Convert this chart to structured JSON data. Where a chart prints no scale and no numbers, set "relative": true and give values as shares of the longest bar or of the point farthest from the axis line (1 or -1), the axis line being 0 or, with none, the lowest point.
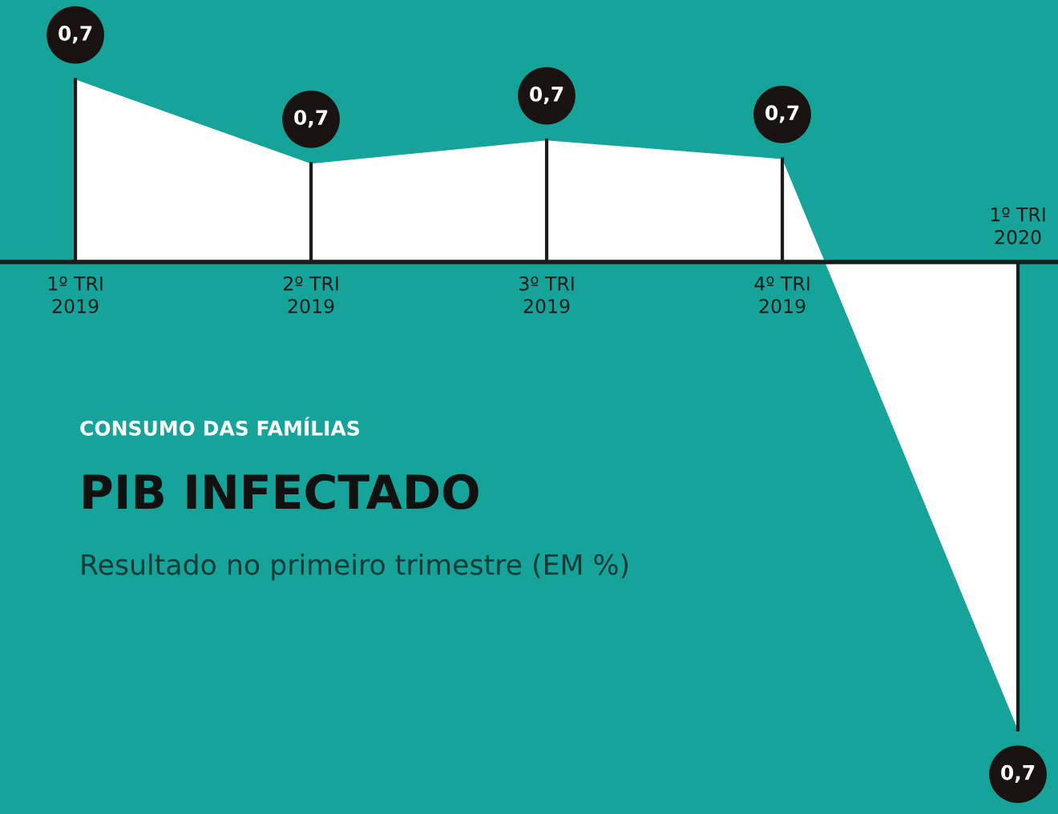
{
  "chart_data": {
    "type": "area",
    "title": "PIB INFECTADO",
    "subtitle": "Resultado no primeiro trimestre (EM %)",
    "annotations": [
      "CONSUMO DAS FAMÍLIAS",
      {
        "text": "0,7",
        "x": "1º TRI\n2019",
        "y": 0.39
      },
      {
        "text": "0,7",
        "x": "2º TRI\n2019",
        "y": 0.21
      },
      {
        "text": "0,7",
        "x": "3º TRI\n2019",
        "y": 0.26
      },
      {
        "text": "0,7",
        "x": "4º TRI\n2019",
        "y": 0.22
      },
      {
        "text": "0,7",
        "x": "1º TRI\n2020",
        "y": -1.0
      }
    ],
    "categories": [
      "1º TRI\n2019",
      "2º TRI\n2019",
      "3º TRI\n2019",
      "4º TRI\n2019",
      "1º TRI\n2020"
    ],
    "relative": true,
    "series": [
      {
        "color": "#ffffff",
        "values": [
          0.39,
          0.21,
          0.26,
          0.22,
          -1.0
        ]
      }
    ]
  }
}
